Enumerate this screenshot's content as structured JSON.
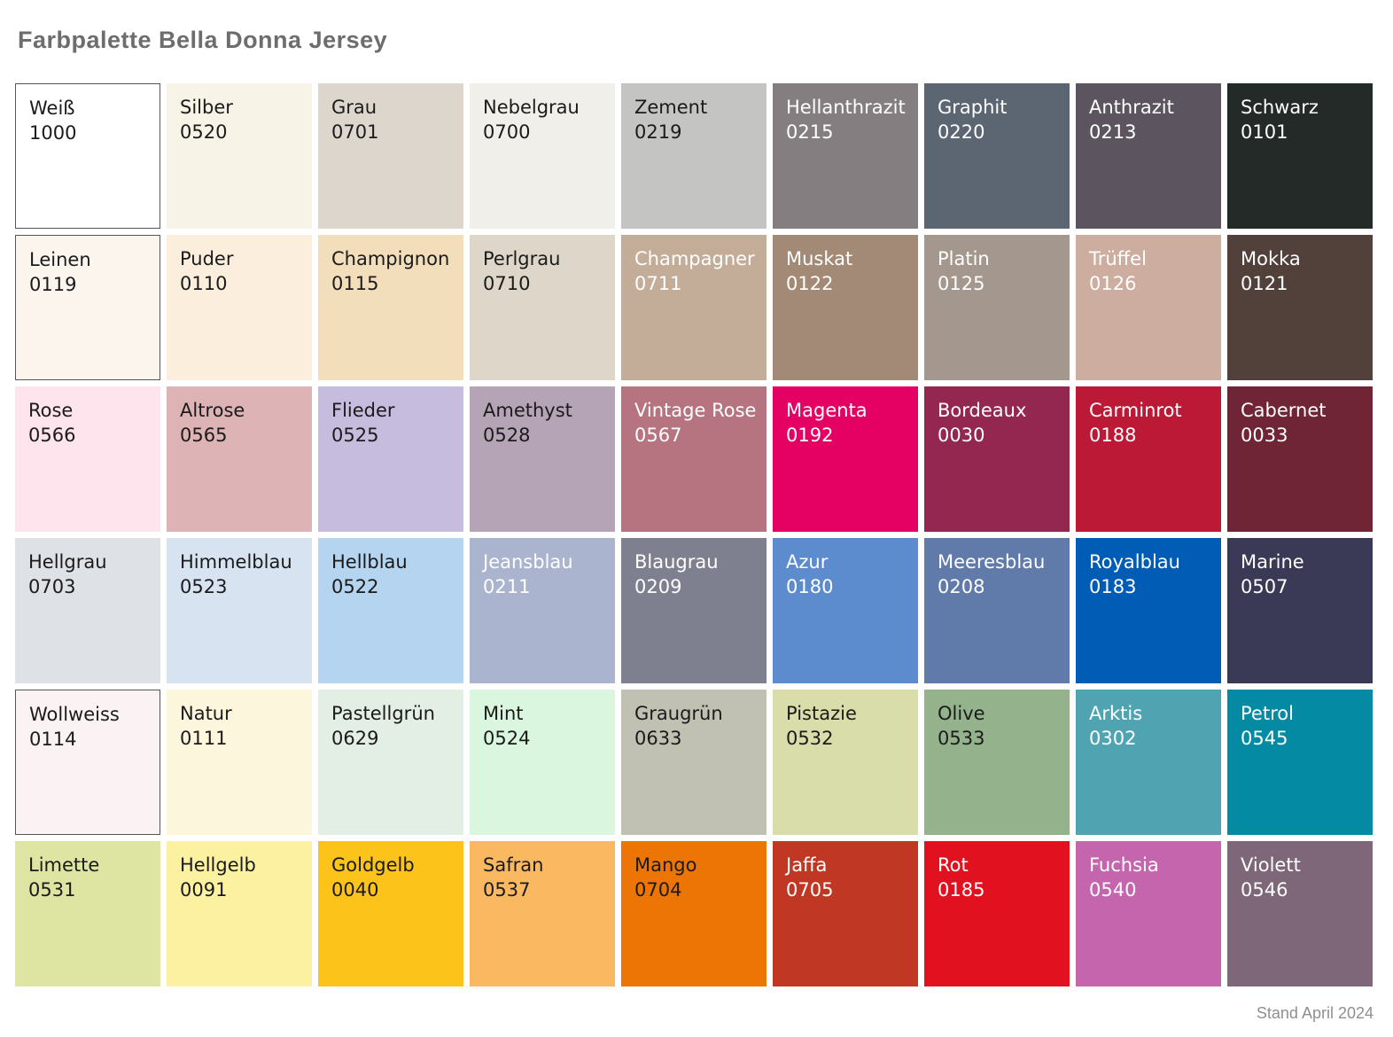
{
  "title": "Farbpalette Bella Donna Jersey",
  "footer": "Stand April 2024",
  "palette": {
    "rows": 6,
    "cols": 9,
    "swatches": [
      {
        "name": "Weiß",
        "code": "1000",
        "color": "#ffffff",
        "text": "dark",
        "border": true
      },
      {
        "name": "Silber",
        "code": "0520",
        "color": "#f8f3e7",
        "text": "dark",
        "border": false
      },
      {
        "name": "Grau",
        "code": "0701",
        "color": "#ddd6cd",
        "text": "dark",
        "border": false
      },
      {
        "name": "Nebelgrau",
        "code": "0700",
        "color": "#f0efe9",
        "text": "dark",
        "border": false
      },
      {
        "name": "Zement",
        "code": "0219",
        "color": "#c4c4c2",
        "text": "dark",
        "border": false
      },
      {
        "name": "Hellanthrazit",
        "code": "0215",
        "color": "#857e80",
        "text": "light",
        "border": false
      },
      {
        "name": "Graphit",
        "code": "0220",
        "color": "#5b6672",
        "text": "light",
        "border": false
      },
      {
        "name": "Anthrazit",
        "code": "0213",
        "color": "#5c5560",
        "text": "light",
        "border": false
      },
      {
        "name": "Schwarz",
        "code": "0101",
        "color": "#242a27",
        "text": "light",
        "border": false
      },
      {
        "name": "Leinen",
        "code": "0119",
        "color": "#fbf5ed",
        "text": "dark",
        "border": true
      },
      {
        "name": "Puder",
        "code": "0110",
        "color": "#fceedd",
        "text": "dark",
        "border": false
      },
      {
        "name": "Champignon",
        "code": "0115",
        "color": "#f3debb",
        "text": "dark",
        "border": false
      },
      {
        "name": "Perlgrau",
        "code": "0710",
        "color": "#ded7c9",
        "text": "dark",
        "border": false
      },
      {
        "name": "Champagner",
        "code": "0711",
        "color": "#c3ad98",
        "text": "light",
        "border": false
      },
      {
        "name": "Muskat",
        "code": "0122",
        "color": "#a28a76",
        "text": "light",
        "border": false
      },
      {
        "name": "Platin",
        "code": "0125",
        "color": "#a4978d",
        "text": "light",
        "border": false
      },
      {
        "name": "Trüffel",
        "code": "0126",
        "color": "#ccad9f",
        "text": "light",
        "border": false
      },
      {
        "name": "Mokka",
        "code": "0121",
        "color": "#52413b",
        "text": "light",
        "border": false
      },
      {
        "name": "Rose",
        "code": "0566",
        "color": "#fde4ed",
        "text": "dark",
        "border": false
      },
      {
        "name": "Altrose",
        "code": "0565",
        "color": "#ddb3b5",
        "text": "dark",
        "border": false
      },
      {
        "name": "Flieder",
        "code": "0525",
        "color": "#c6bdde",
        "text": "dark",
        "border": false
      },
      {
        "name": "Amethyst",
        "code": "0528",
        "color": "#b5a4b6",
        "text": "dark",
        "border": false
      },
      {
        "name": "Vintage Rose",
        "code": "0567",
        "color": "#b5747f",
        "text": "light",
        "border": false
      },
      {
        "name": "Magenta",
        "code": "0192",
        "color": "#e50064",
        "text": "light",
        "border": false
      },
      {
        "name": "Bordeaux",
        "code": "0030",
        "color": "#942750",
        "text": "light",
        "border": false
      },
      {
        "name": "Carminrot",
        "code": "0188",
        "color": "#bc1937",
        "text": "light",
        "border": false
      },
      {
        "name": "Cabernet",
        "code": "0033",
        "color": "#702536",
        "text": "light",
        "border": false
      },
      {
        "name": "Hellgrau",
        "code": "0703",
        "color": "#dee1e5",
        "text": "dark",
        "border": false
      },
      {
        "name": "Himmelblau",
        "code": "0523",
        "color": "#d7e3f1",
        "text": "dark",
        "border": false
      },
      {
        "name": "Hellblau",
        "code": "0522",
        "color": "#b4d4ef",
        "text": "dark",
        "border": false
      },
      {
        "name": "Jeansblau",
        "code": "0211",
        "color": "#abb4ce",
        "text": "light",
        "border": false
      },
      {
        "name": "Blaugrau",
        "code": "0209",
        "color": "#7e808f",
        "text": "light",
        "border": false
      },
      {
        "name": "Azur",
        "code": "0180",
        "color": "#5d8cce",
        "text": "light",
        "border": false
      },
      {
        "name": "Meeresblau",
        "code": "0208",
        "color": "#607ba9",
        "text": "light",
        "border": false
      },
      {
        "name": "Royalblau",
        "code": "0183",
        "color": "#005cb4",
        "text": "light",
        "border": false
      },
      {
        "name": "Marine",
        "code": "0507",
        "color": "#3a3a56",
        "text": "light",
        "border": false
      },
      {
        "name": "Wollweiss",
        "code": "0114",
        "color": "#fbf3f3",
        "text": "dark",
        "border": true
      },
      {
        "name": "Natur",
        "code": "0111",
        "color": "#fcf6dd",
        "text": "dark",
        "border": false
      },
      {
        "name": "Pastellgrün",
        "code": "0629",
        "color": "#e3eee5",
        "text": "dark",
        "border": false
      },
      {
        "name": "Mint",
        "code": "0524",
        "color": "#daf6de",
        "text": "dark",
        "border": false
      },
      {
        "name": "Graugrün",
        "code": "0633",
        "color": "#c0c0b3",
        "text": "dark",
        "border": false
      },
      {
        "name": "Pistazie",
        "code": "0532",
        "color": "#d9dda9",
        "text": "dark",
        "border": false
      },
      {
        "name": "Olive",
        "code": "0533",
        "color": "#94b28b",
        "text": "dark",
        "border": false
      },
      {
        "name": "Arktis",
        "code": "0302",
        "color": "#50a4b1",
        "text": "light",
        "border": false
      },
      {
        "name": "Petrol",
        "code": "0545",
        "color": "#048aa3",
        "text": "light",
        "border": false
      },
      {
        "name": "Limette",
        "code": "0531",
        "color": "#dee4a1",
        "text": "dark",
        "border": false
      },
      {
        "name": "Hellgelb",
        "code": "0091",
        "color": "#fbf1a1",
        "text": "dark",
        "border": false
      },
      {
        "name": "Goldgelb",
        "code": "0040",
        "color": "#fcc31b",
        "text": "dark",
        "border": false
      },
      {
        "name": "Safran",
        "code": "0537",
        "color": "#fab961",
        "text": "dark",
        "border": false
      },
      {
        "name": "Mango",
        "code": "0704",
        "color": "#ed7505",
        "text": "dark",
        "border": false
      },
      {
        "name": "Jaffa",
        "code": "0705",
        "color": "#c03823",
        "text": "light",
        "border": false
      },
      {
        "name": "Rot",
        "code": "0185",
        "color": "#e2111f",
        "text": "light",
        "border": false
      },
      {
        "name": "Fuchsia",
        "code": "0540",
        "color": "#c465ad",
        "text": "light",
        "border": false
      },
      {
        "name": "Violett",
        "code": "0546",
        "color": "#7d6779",
        "text": "light",
        "border": false
      }
    ]
  }
}
